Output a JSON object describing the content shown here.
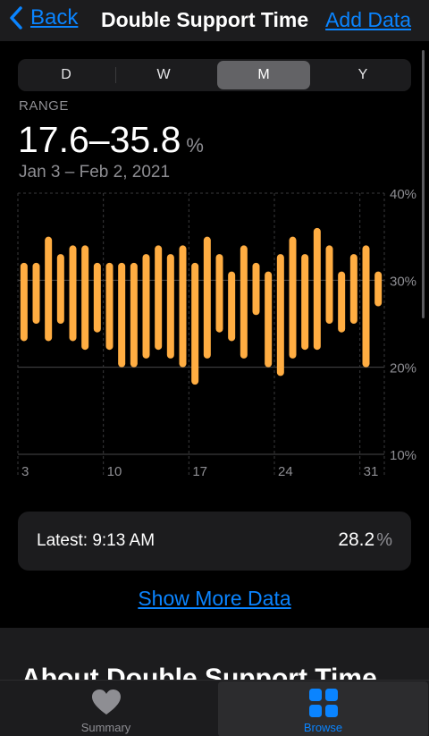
{
  "nav": {
    "back_label": "Back",
    "title": "Double Support Time",
    "add_data_label": "Add Data"
  },
  "segments": [
    "D",
    "W",
    "M",
    "Y"
  ],
  "selected_segment": "M",
  "summary": {
    "range_label": "RANGE",
    "range_value": "17.6–35.8",
    "unit": "%",
    "date_range": "Jan 3 – Feb 2, 2021"
  },
  "chart_data": {
    "type": "bar",
    "subtype": "range",
    "x": [
      3,
      4,
      5,
      6,
      7,
      8,
      9,
      10,
      11,
      12,
      13,
      14,
      15,
      16,
      17,
      18,
      19,
      20,
      21,
      22,
      23,
      24,
      25,
      26,
      27,
      28,
      29,
      30,
      31,
      32
    ],
    "x_tick_labels": [
      "3",
      "10",
      "17",
      "24",
      "31"
    ],
    "y_tick_labels": [
      "40%",
      "30%",
      "20%",
      "10%"
    ],
    "ylim": [
      10,
      40
    ],
    "series": [
      {
        "low": [
          23,
          25,
          23,
          25,
          23,
          22,
          24,
          22,
          20,
          20,
          21,
          22,
          21,
          20,
          18,
          21,
          24,
          23,
          21,
          26,
          20,
          19,
          21,
          22,
          22,
          25,
          24,
          25,
          20,
          27
        ],
        "high": [
          32,
          32,
          35,
          33,
          34,
          34,
          32,
          32,
          32,
          32,
          33,
          34,
          33,
          34,
          32,
          35,
          33,
          31,
          34,
          32,
          31,
          33,
          35,
          33,
          36,
          34,
          31,
          33,
          34,
          31
        ]
      }
    ],
    "colors": {
      "bar": "#ffad42",
      "grid": "#3a3a3c",
      "text": "#8e8e93"
    }
  },
  "latest": {
    "label": "Latest: 9:13 AM",
    "value": "28.2",
    "unit": "%"
  },
  "show_more_label": "Show More Data",
  "about_title": "About Double Support Time",
  "tabbar": {
    "summary_label": "Summary",
    "browse_label": "Browse",
    "selected": "Browse"
  },
  "colors": {
    "accent": "#0a84ff",
    "background": "#000000",
    "card": "#1c1c1e"
  },
  "icons": {
    "back": "chevron-left-icon",
    "summary": "heart-icon",
    "browse": "grid-icon"
  }
}
